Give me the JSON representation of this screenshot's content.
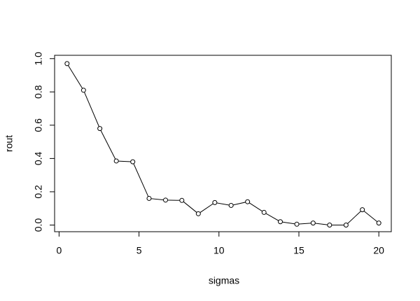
{
  "chart_data": {
    "type": "line",
    "xlabel": "sigmas",
    "ylabel": "rout",
    "x": [
      0.5,
      1.53,
      2.55,
      3.58,
      4.61,
      5.63,
      6.66,
      7.68,
      8.71,
      9.74,
      10.76,
      11.79,
      12.82,
      13.84,
      14.87,
      15.89,
      16.92,
      17.95,
      18.97,
      20
    ],
    "series": [
      {
        "color": "#000000",
        "values": [
          0.97,
          0.81,
          0.58,
          0.385,
          0.38,
          0.16,
          0.15,
          0.148,
          0.068,
          0.135,
          0.118,
          0.14,
          0.076,
          0.02,
          0.005,
          0.012,
          0.0,
          0.0,
          0.092,
          0.012
        ]
      }
    ],
    "xlim": [
      -0.28,
      20.78
    ],
    "xticks": [
      0,
      5,
      10,
      15,
      20
    ],
    "ylim": [
      -0.04,
      1.02
    ],
    "yticks": [
      {
        "value": 0,
        "label": "0.0"
      },
      0.2,
      0.4,
      0.6,
      0.8,
      {
        "value": 1,
        "label": "1.0"
      }
    ]
  }
}
